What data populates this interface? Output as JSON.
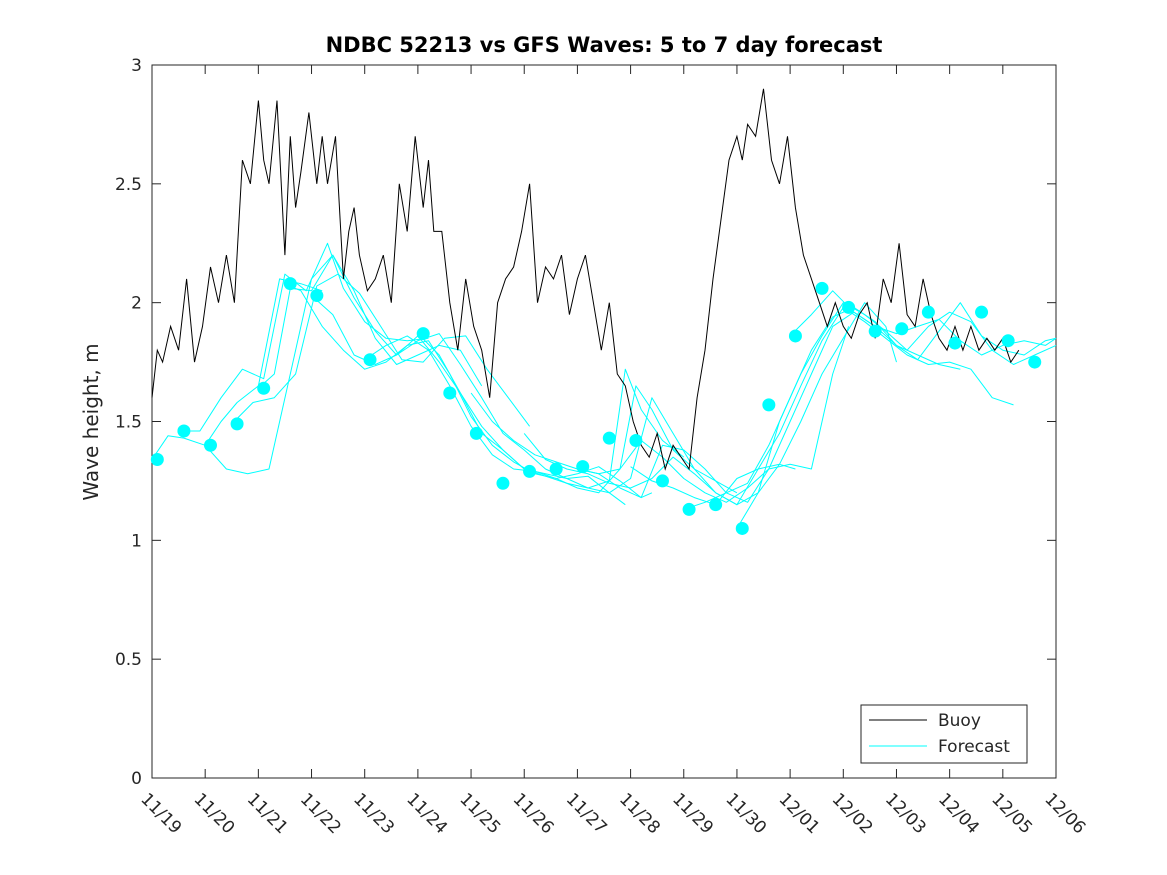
{
  "chart_data": {
    "type": "line",
    "title": "NDBC 52213 vs GFS Waves: 5 to 7 day forecast",
    "xlabel": "",
    "ylabel": "Wave height, m",
    "xlim": [
      0,
      17
    ],
    "ylim": [
      0,
      3
    ],
    "x_tick_labels": [
      "11/19",
      "11/20",
      "11/21",
      "11/22",
      "11/23",
      "11/24",
      "11/25",
      "11/26",
      "11/27",
      "11/28",
      "11/29",
      "11/30",
      "12/01",
      "12/02",
      "12/03",
      "12/04",
      "12/05",
      "12/06"
    ],
    "y_ticks": [
      0,
      0.5,
      1,
      1.5,
      2,
      2.5,
      3
    ],
    "y_tick_labels": [
      "0",
      "0.5",
      "1",
      "1.5",
      "2",
      "2.5",
      "3"
    ],
    "legend": {
      "position": "bottom-right",
      "entries": [
        "Buoy",
        "Forecast"
      ]
    },
    "colors": {
      "buoy": "#000000",
      "forecast": "#00ffff",
      "axes": "#262626"
    },
    "buoy": {
      "name": "Buoy",
      "x": [
        0,
        0.1,
        0.2,
        0.35,
        0.5,
        0.65,
        0.8,
        0.95,
        1.1,
        1.25,
        1.4,
        1.55,
        1.7,
        1.85,
        2.0,
        2.1,
        2.2,
        2.35,
        2.5,
        2.6,
        2.7,
        2.8,
        2.95,
        3.1,
        3.2,
        3.3,
        3.45,
        3.6,
        3.7,
        3.8,
        3.9,
        4.05,
        4.2,
        4.35,
        4.5,
        4.65,
        4.8,
        4.95,
        5.1,
        5.2,
        5.3,
        5.45,
        5.6,
        5.75,
        5.9,
        6.05,
        6.2,
        6.35,
        6.5,
        6.65,
        6.8,
        6.95,
        7.1,
        7.25,
        7.4,
        7.55,
        7.7,
        7.85,
        8.0,
        8.15,
        8.3,
        8.45,
        8.6,
        8.75,
        8.9,
        9.05,
        9.2,
        9.35,
        9.5,
        9.65,
        9.8,
        9.95,
        10.1,
        10.25,
        10.4,
        10.55,
        10.7,
        10.85,
        11.0,
        11.1,
        11.2,
        11.35,
        11.5,
        11.65,
        11.8,
        11.95,
        12.1,
        12.25,
        12.4,
        12.55,
        12.7,
        12.85,
        13.0,
        13.15,
        13.3,
        13.45,
        13.6,
        13.75,
        13.9,
        14.05,
        14.2,
        14.35,
        14.5,
        14.65,
        14.8,
        14.95,
        15.1,
        15.25,
        15.4,
        15.55,
        15.7,
        15.85,
        16.0,
        16.15,
        16.3
      ],
      "values": [
        1.6,
        1.8,
        1.75,
        1.9,
        1.8,
        2.1,
        1.75,
        1.9,
        2.15,
        2.0,
        2.2,
        2.0,
        2.6,
        2.5,
        2.85,
        2.6,
        2.5,
        2.85,
        2.2,
        2.7,
        2.4,
        2.55,
        2.8,
        2.5,
        2.7,
        2.5,
        2.7,
        2.1,
        2.3,
        2.4,
        2.2,
        2.05,
        2.1,
        2.2,
        2.0,
        2.5,
        2.3,
        2.7,
        2.4,
        2.6,
        2.3,
        2.3,
        2.0,
        1.8,
        2.1,
        1.9,
        1.8,
        1.6,
        2.0,
        2.1,
        2.15,
        2.3,
        2.5,
        2.0,
        2.15,
        2.1,
        2.2,
        1.95,
        2.1,
        2.2,
        2.0,
        1.8,
        2.0,
        1.7,
        1.65,
        1.5,
        1.4,
        1.35,
        1.45,
        1.3,
        1.4,
        1.35,
        1.3,
        1.6,
        1.8,
        2.1,
        2.35,
        2.6,
        2.7,
        2.6,
        2.75,
        2.7,
        2.9,
        2.6,
        2.5,
        2.7,
        2.4,
        2.2,
        2.1,
        2.0,
        1.9,
        2.0,
        1.9,
        1.85,
        1.95,
        2.0,
        1.85,
        2.1,
        2.0,
        2.25,
        1.95,
        1.9,
        2.1,
        1.95,
        1.85,
        1.8,
        1.9,
        1.8,
        1.9,
        1.8,
        1.85,
        1.8,
        1.85,
        1.75,
        1.8
      ]
    },
    "forecast_runs": [
      {
        "x": [
          0,
          0.3,
          0.6,
          1.0,
          1.3,
          1.6,
          2.0,
          2.4,
          2.8,
          3.2
        ],
        "values": [
          1.34,
          1.44,
          1.43,
          1.4,
          1.5,
          1.58,
          1.65,
          2.1,
          2.08,
          2.05
        ]
      },
      {
        "x": [
          0.5,
          0.9,
          1.3,
          1.7,
          2.1,
          2.5,
          2.9,
          3.3,
          3.6,
          4.0,
          4.4,
          4.8,
          5.2
        ],
        "values": [
          1.46,
          1.46,
          1.6,
          1.72,
          1.68,
          2.12,
          2.05,
          2.25,
          2.06,
          1.92,
          1.85,
          1.84,
          1.85
        ]
      },
      {
        "x": [
          1.0,
          1.4,
          1.8,
          2.2,
          2.6,
          3.0,
          3.4,
          3.8,
          4.2,
          4.6,
          5.0,
          5.4,
          5.8,
          6.2
        ],
        "values": [
          1.4,
          1.3,
          1.28,
          1.3,
          1.7,
          2.1,
          2.2,
          2.05,
          1.85,
          1.74,
          1.78,
          1.82,
          1.8,
          1.65
        ]
      },
      {
        "x": [
          1.5,
          1.9,
          2.3,
          2.7,
          3.1,
          3.5,
          3.9,
          4.3,
          4.7,
          5.1,
          5.5,
          5.9,
          6.3,
          6.7,
          7.1
        ],
        "values": [
          1.49,
          1.58,
          1.6,
          1.7,
          2.07,
          2.12,
          2.04,
          1.9,
          1.76,
          1.75,
          1.85,
          1.86,
          1.72,
          1.6,
          1.48
        ]
      },
      {
        "x": [
          2.0,
          2.3,
          2.6,
          3.0,
          3.4,
          3.8,
          4.2,
          4.6,
          5.0,
          5.4,
          5.8,
          6.2,
          6.6,
          7.0,
          7.4,
          7.8,
          8.2,
          8.6,
          8.9
        ],
        "values": [
          1.64,
          1.7,
          2.06,
          2.05,
          2.2,
          2.02,
          1.88,
          1.78,
          1.84,
          1.87,
          1.74,
          1.6,
          1.45,
          1.38,
          1.3,
          1.26,
          1.27,
          1.2,
          1.15
        ]
      },
      {
        "x": [
          2.5,
          2.8,
          3.2,
          3.6,
          4.0,
          4.4,
          4.8,
          5.2,
          5.6,
          6.0,
          6.4,
          6.8,
          7.2,
          7.6,
          8.0,
          8.4,
          8.8,
          9.2,
          9.4
        ],
        "values": [
          2.08,
          2.05,
          1.9,
          1.8,
          1.72,
          1.75,
          1.82,
          1.84,
          1.7,
          1.52,
          1.4,
          1.33,
          1.28,
          1.26,
          1.28,
          1.31,
          1.25,
          1.18,
          1.2
        ]
      },
      {
        "x": [
          3.0,
          3.4,
          3.8,
          4.2,
          4.6,
          5.0,
          5.4,
          5.8,
          6.2,
          6.6,
          7.0,
          7.4,
          7.8,
          8.2,
          8.6,
          8.9,
          9.2,
          9.6,
          10.0
        ],
        "values": [
          2.03,
          1.95,
          1.78,
          1.74,
          1.78,
          1.86,
          1.75,
          1.62,
          1.45,
          1.38,
          1.3,
          1.27,
          1.24,
          1.22,
          1.25,
          1.72,
          1.55,
          1.42,
          1.35
        ]
      },
      {
        "x": [
          4.0,
          4.4,
          4.8,
          5.2,
          5.6,
          6.0,
          6.4,
          6.8,
          7.2,
          7.6,
          8.0,
          8.4,
          8.8,
          9.1,
          9.4,
          9.8,
          10.2,
          10.6,
          11.0
        ],
        "values": [
          1.76,
          1.82,
          1.86,
          1.8,
          1.65,
          1.48,
          1.36,
          1.3,
          1.29,
          1.26,
          1.22,
          1.2,
          1.3,
          1.65,
          1.55,
          1.38,
          1.3,
          1.25,
          1.2
        ]
      },
      {
        "x": [
          5.0,
          5.4,
          5.8,
          6.2,
          6.6,
          7.0,
          7.4,
          7.8,
          8.2,
          8.6,
          9.0,
          9.4,
          9.8,
          10.2,
          10.6,
          11.0,
          11.4,
          11.8,
          12.1
        ],
        "values": [
          1.87,
          1.78,
          1.62,
          1.48,
          1.38,
          1.3,
          1.28,
          1.26,
          1.22,
          1.2,
          1.26,
          1.6,
          1.45,
          1.3,
          1.2,
          1.15,
          1.2,
          1.32,
          1.3
        ]
      },
      {
        "x": [
          6.0,
          6.4,
          6.8,
          7.2,
          7.6,
          8.0,
          8.4,
          8.8,
          9.2,
          9.6,
          10.0,
          10.4,
          10.8,
          11.2,
          11.6,
          12.0,
          12.4,
          12.8,
          13.1
        ],
        "values": [
          1.62,
          1.5,
          1.42,
          1.36,
          1.33,
          1.3,
          1.28,
          1.22,
          1.18,
          1.4,
          1.38,
          1.3,
          1.2,
          1.16,
          1.3,
          1.32,
          1.3,
          1.7,
          1.9
        ]
      },
      {
        "x": [
          7.0,
          7.4,
          7.8,
          8.2,
          8.6,
          9.0,
          9.4,
          9.8,
          10.2,
          10.6,
          11.0,
          11.4,
          11.8,
          12.2,
          12.6,
          13.0,
          13.4,
          13.8,
          14.0
        ],
        "values": [
          1.45,
          1.34,
          1.3,
          1.28,
          1.24,
          1.22,
          1.26,
          1.35,
          1.28,
          1.2,
          1.15,
          1.3,
          1.32,
          1.5,
          1.7,
          1.85,
          2.0,
          1.9,
          1.75
        ]
      },
      {
        "x": [
          8.0,
          8.4,
          8.8,
          9.2,
          9.6,
          10.0,
          10.4,
          10.8,
          11.2,
          11.6,
          12.0,
          12.4,
          12.8,
          13.2,
          13.6,
          14.0,
          14.4,
          14.8,
          15.2
        ],
        "values": [
          1.3,
          1.28,
          1.3,
          1.42,
          1.35,
          1.26,
          1.2,
          1.16,
          1.22,
          1.3,
          1.5,
          1.7,
          1.9,
          1.96,
          1.9,
          1.82,
          1.78,
          1.74,
          1.72
        ]
      },
      {
        "x": [
          9.0,
          9.4,
          9.8,
          10.2,
          10.6,
          11.0,
          11.4,
          11.8,
          12.2,
          12.6,
          13.0,
          13.4,
          13.8,
          14.2,
          14.6,
          15.0,
          15.4,
          15.8,
          16.2
        ],
        "values": [
          1.31,
          1.25,
          1.22,
          1.18,
          1.15,
          1.26,
          1.3,
          1.45,
          1.65,
          1.84,
          1.98,
          1.92,
          1.85,
          1.78,
          1.74,
          1.75,
          1.72,
          1.6,
          1.57
        ]
      },
      {
        "x": [
          10.0,
          10.4,
          10.8,
          11.2,
          11.6,
          12.0,
          12.4,
          12.8,
          13.2,
          13.6,
          14.0,
          14.4,
          14.8,
          15.2,
          15.6,
          16.0,
          16.4,
          16.8,
          17.0
        ],
        "values": [
          1.13,
          1.16,
          1.2,
          1.24,
          1.4,
          1.6,
          1.8,
          1.94,
          1.98,
          1.92,
          1.82,
          1.76,
          1.88,
          2.0,
          1.86,
          1.8,
          1.78,
          1.84,
          1.85
        ]
      },
      {
        "x": [
          11.0,
          11.4,
          11.8,
          12.2,
          12.6,
          13.0,
          13.4,
          13.8,
          14.2,
          14.6,
          15.0,
          15.4,
          15.8,
          16.2,
          16.6,
          17.0
        ],
        "values": [
          1.05,
          1.2,
          1.5,
          1.7,
          1.86,
          2.0,
          1.95,
          1.88,
          1.8,
          1.9,
          1.96,
          1.92,
          1.8,
          1.74,
          1.78,
          1.82
        ]
      },
      {
        "x": [
          12.0,
          12.4,
          12.8,
          13.2,
          13.6,
          14.0,
          14.4,
          14.8,
          15.2,
          15.6,
          16.0,
          16.4,
          16.8,
          17.0
        ],
        "values": [
          1.86,
          1.95,
          2.05,
          1.96,
          1.9,
          1.87,
          1.9,
          1.93,
          1.84,
          1.78,
          1.82,
          1.84,
          1.82,
          1.85
        ]
      }
    ],
    "forecast_markers": {
      "x": [
        0.1,
        0.6,
        1.1,
        1.6,
        2.1,
        2.6,
        3.1,
        4.1,
        5.1,
        5.6,
        6.1,
        6.6,
        7.1,
        7.6,
        8.1,
        8.6,
        9.1,
        9.6,
        10.1,
        10.6,
        11.1,
        11.6,
        12.1,
        12.6,
        13.1,
        13.6,
        14.1,
        14.6,
        15.1,
        15.6,
        16.1,
        16.6
      ],
      "values": [
        1.34,
        1.46,
        1.4,
        1.49,
        1.64,
        2.08,
        2.03,
        1.76,
        1.87,
        1.62,
        1.45,
        1.24,
        1.29,
        1.3,
        1.31,
        1.43,
        1.42,
        1.25,
        1.13,
        1.15,
        1.05,
        1.57,
        1.86,
        2.06,
        1.98,
        1.88,
        1.89,
        1.96,
        1.83,
        1.96,
        1.84,
        1.75
      ]
    }
  }
}
